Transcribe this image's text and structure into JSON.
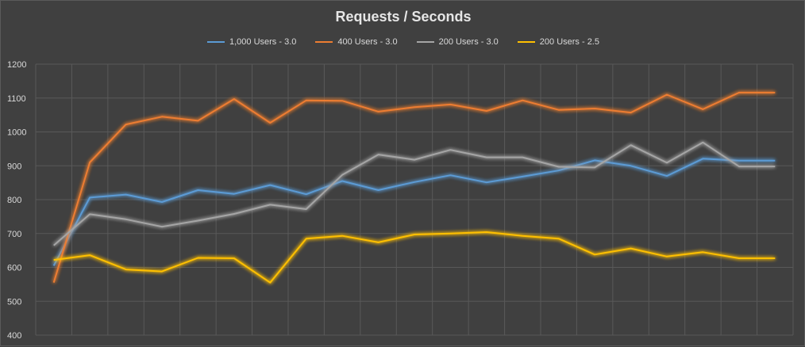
{
  "chart_data": {
    "type": "line",
    "title": "Requests / Seconds",
    "xlabel": "",
    "ylabel": "",
    "ylim": [
      400,
      1200
    ],
    "yticks": [
      1200,
      1100,
      1000,
      900,
      800,
      700,
      600,
      500,
      400
    ],
    "grid": true,
    "legend_position": "top",
    "x": [
      1,
      2,
      3,
      4,
      5,
      6,
      7,
      8,
      9,
      10,
      11,
      12,
      13,
      14,
      15,
      16,
      17,
      18,
      19,
      20,
      21
    ],
    "series": [
      {
        "name": "1,000 Users - 3.0",
        "color": "#5b9bd5",
        "values": [
          605,
          806,
          815,
          793,
          828,
          817,
          843,
          816,
          855,
          828,
          852,
          872,
          851,
          868,
          886,
          916,
          900,
          870,
          921,
          915,
          915
        ]
      },
      {
        "name": "400 Users - 3.0",
        "color": "#ed7d31",
        "values": [
          555,
          910,
          1022,
          1045,
          1033,
          1097,
          1027,
          1093,
          1092,
          1060,
          1073,
          1081,
          1062,
          1093,
          1065,
          1069,
          1057,
          1110,
          1067,
          1116,
          1116
        ]
      },
      {
        "name": "200 Users - 3.0",
        "color": "#a5a5a5",
        "values": [
          665,
          757,
          742,
          720,
          738,
          758,
          785,
          772,
          873,
          933,
          918,
          947,
          925,
          925,
          897,
          895,
          961,
          909,
          969,
          898,
          898
        ]
      },
      {
        "name": "200 Users - 2.5",
        "color": "#ffc000",
        "values": [
          622,
          636,
          594,
          588,
          628,
          627,
          555,
          685,
          693,
          674,
          697,
          700,
          704,
          693,
          685,
          638,
          656,
          632,
          645,
          627,
          627
        ]
      }
    ]
  },
  "colors": {
    "background": "#404040",
    "grid": "#595959",
    "text": "#d9d9d9"
  }
}
